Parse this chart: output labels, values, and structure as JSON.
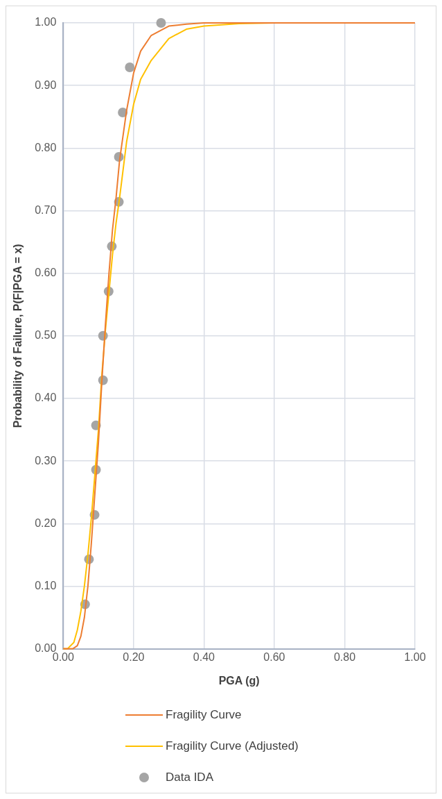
{
  "chart_data": {
    "type": "line",
    "xlabel": "PGA (g)",
    "ylabel": "Probability of Failure, P(F|PGA = x)",
    "xlim": [
      0,
      1
    ],
    "xticks": [
      {
        "value": 0,
        "label": "0.00"
      },
      {
        "value": 0.2,
        "label": "0.20"
      },
      {
        "value": 0.4,
        "label": "0.40"
      },
      {
        "value": 0.6,
        "label": "0.60"
      },
      {
        "value": 0.8,
        "label": "0.80"
      },
      {
        "value": 1,
        "label": "1.00"
      }
    ],
    "ylim": [
      0,
      1
    ],
    "yticks": [
      {
        "value": 0,
        "label": "0.00"
      },
      {
        "value": 0.1,
        "label": "0.10"
      },
      {
        "value": 0.2,
        "label": "0.20"
      },
      {
        "value": 0.3,
        "label": "0.30"
      },
      {
        "value": 0.4,
        "label": "0.40"
      },
      {
        "value": 0.5,
        "label": "0.50"
      },
      {
        "value": 0.6,
        "label": "0.60"
      },
      {
        "value": 0.7,
        "label": "0.70"
      },
      {
        "value": 0.8,
        "label": "0.80"
      },
      {
        "value": 0.9,
        "label": "0.90"
      },
      {
        "value": 1,
        "label": "1.00"
      }
    ],
    "grid": true,
    "legend": "bottom",
    "series": [
      {
        "name": "Fragility Curve",
        "color": "#ed7d31",
        "marker": "none",
        "x": [
          0,
          0.027,
          0.04,
          0.05,
          0.06,
          0.07,
          0.08,
          0.09,
          0.1,
          0.11,
          0.12,
          0.13,
          0.14,
          0.15,
          0.16,
          0.18,
          0.2,
          0.22,
          0.25,
          0.3,
          0.35,
          0.4,
          0.5,
          1.0
        ],
        "values": [
          0,
          0,
          0.005,
          0.02,
          0.05,
          0.1,
          0.17,
          0.25,
          0.33,
          0.43,
          0.52,
          0.6,
          0.67,
          0.72,
          0.78,
          0.86,
          0.92,
          0.955,
          0.98,
          0.995,
          0.998,
          1,
          1,
          1
        ]
      },
      {
        "name": "Fragility Curve (Adjusted)",
        "color": "#ffc000",
        "marker": "none",
        "x": [
          0,
          0.012,
          0.03,
          0.04,
          0.05,
          0.06,
          0.07,
          0.08,
          0.09,
          0.1,
          0.11,
          0.12,
          0.13,
          0.14,
          0.15,
          0.16,
          0.18,
          0.2,
          0.22,
          0.25,
          0.3,
          0.35,
          0.4,
          0.5,
          0.6,
          0.7,
          1.0
        ],
        "values": [
          0,
          0,
          0.01,
          0.03,
          0.06,
          0.1,
          0.15,
          0.21,
          0.28,
          0.35,
          0.44,
          0.51,
          0.57,
          0.63,
          0.68,
          0.72,
          0.81,
          0.87,
          0.91,
          0.94,
          0.975,
          0.99,
          0.995,
          0.999,
          1,
          1,
          1
        ]
      },
      {
        "name": "Data IDA",
        "type": "scatter",
        "color": "#a5a5a5",
        "marker": "circle",
        "x": [
          0.062,
          0.073,
          0.089,
          0.093,
          0.093,
          0.113,
          0.113,
          0.129,
          0.138,
          0.158,
          0.158,
          0.169,
          0.189,
          0.278
        ],
        "values": [
          0.071,
          0.143,
          0.214,
          0.286,
          0.357,
          0.429,
          0.5,
          0.571,
          0.643,
          0.714,
          0.786,
          0.857,
          0.929,
          1.0
        ]
      }
    ]
  }
}
